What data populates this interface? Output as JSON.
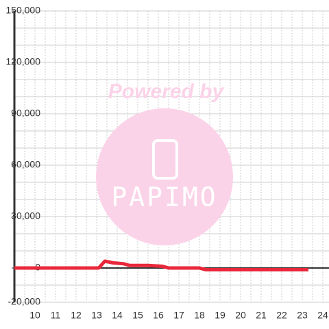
{
  "chart_data": {
    "type": "line",
    "watermark": {
      "line1": "Powered by",
      "line2": "PAPIMO"
    },
    "x": [
      9,
      13.1,
      13.4,
      13.8,
      14.3,
      14.6,
      15.5,
      16.2,
      16.5,
      18.0,
      18.3,
      23.3
    ],
    "series": [
      {
        "color": "#e8283a",
        "values": [
          0,
          0,
          4000,
          3000,
          2500,
          1500,
          1500,
          1000,
          0,
          0,
          -1000,
          -1000
        ]
      }
    ],
    "xlim": [
      9,
      24.3
    ],
    "xticks": [
      10,
      11,
      12,
      13,
      14,
      15,
      16,
      17,
      18,
      19,
      20,
      21,
      22,
      23,
      24
    ],
    "minor_xticks": [
      9.5,
      10.5,
      11.5,
      12.5,
      13.5,
      14.5,
      15.5,
      16.5,
      17.5,
      18.5,
      19.5,
      20.5,
      21.5,
      22.5,
      23.5
    ],
    "ylim": [
      -20000,
      150000
    ],
    "yticks": [
      {
        "value": 150000,
        "label": "150,000"
      },
      {
        "value": 120000,
        "label": "120,000"
      },
      {
        "value": 90000,
        "label": "90,000"
      },
      {
        "value": 60000,
        "label": "60,000"
      },
      {
        "value": 30000,
        "label": "30,000"
      },
      0,
      {
        "value": -20000,
        "label": "-20,000"
      }
    ],
    "minor_yticks": [
      140000,
      130000,
      110000,
      100000,
      80000,
      70000,
      50000,
      40000,
      20000,
      10000,
      -10000
    ],
    "grid": true
  }
}
